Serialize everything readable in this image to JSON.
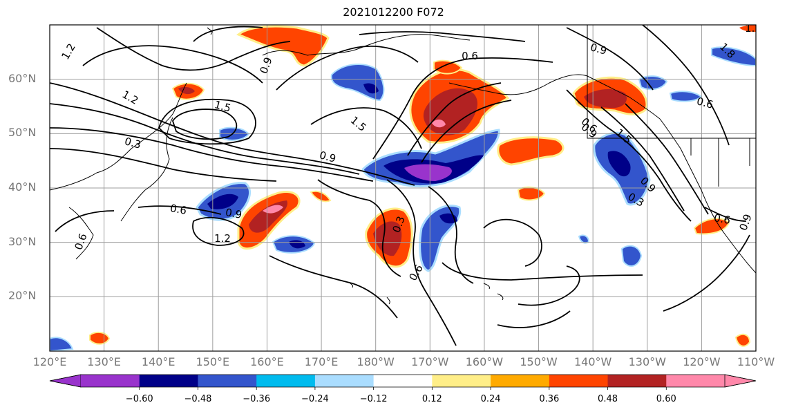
{
  "title": "2021012200 F072",
  "map": {
    "projection": "plate-carree",
    "lon_range": [
      120,
      250
    ],
    "lat_range": [
      10,
      70
    ],
    "lat_labels": [
      "20°N",
      "30°N",
      "40°N",
      "50°N",
      "60°N"
    ],
    "lon_labels": [
      "120°E",
      "130°E",
      "140°E",
      "150°E",
      "160°E",
      "170°E",
      "180°W",
      "170°W",
      "160°W",
      "150°W",
      "140°W",
      "130°W",
      "120°W",
      "110°W"
    ],
    "grid": true,
    "contour_labels": [
      "1.2",
      "1.5",
      "1.2",
      "0.9",
      "0.3",
      "0.9",
      "1.5",
      "0.6",
      "0.9",
      "1.2",
      "0.3",
      "0.6",
      "0.6",
      "0.9",
      "0.9",
      "1.5",
      "1.8",
      "0.6",
      "0.6",
      "0.9",
      "0.3",
      "0.6",
      "0.9",
      "1.2",
      "0.6"
    ]
  },
  "colorbar": {
    "ticks": [
      "−0.60",
      "−0.48",
      "−0.36",
      "−0.24",
      "−0.12",
      "0.12",
      "0.24",
      "0.36",
      "0.48",
      "0.60"
    ],
    "colors": [
      "#9933cc",
      "#000088",
      "#3355cc",
      "#00bbee",
      "#aaddff",
      "#ffffff",
      "#ffee88",
      "#ffaa00",
      "#ff4400",
      "#b22222",
      "#ff88aa"
    ],
    "extend": "both"
  }
}
